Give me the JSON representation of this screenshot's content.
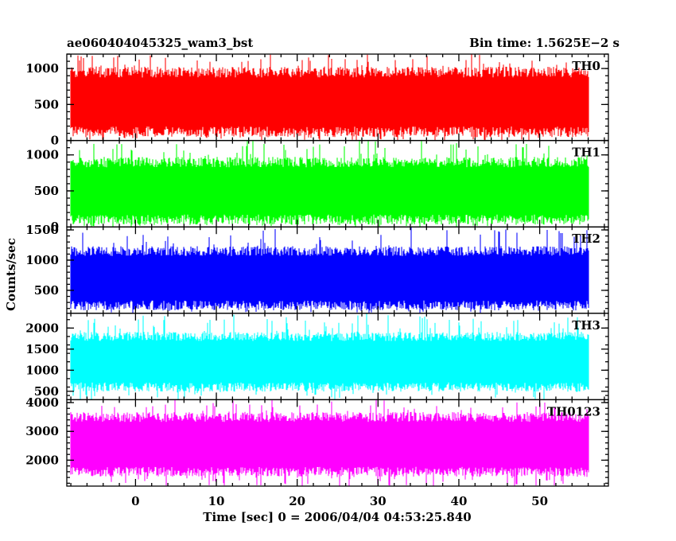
{
  "header": {
    "title": "ae060404045325_wam3_bst",
    "bin_time": "Bin time: 1.5625E−2 s"
  },
  "chart_data": {
    "type": "line",
    "xlabel": "Time [sec] 0 = 2006/04/04 04:53:25.840",
    "ylabel": "Counts/sec",
    "xlim": [
      -8.5,
      58.5
    ],
    "data_range": [
      -8.0,
      56.0
    ],
    "bin_time": 0.015625,
    "x_ticks": [
      0,
      10,
      20,
      30,
      40,
      50
    ],
    "panels": [
      {
        "name": "TH0",
        "color": "#ff0000",
        "ylim": [
          0,
          1200
        ],
        "yticks": [
          0,
          500,
          1000
        ],
        "typical_low": 120,
        "typical_high": 950,
        "spike_max": 1200,
        "noise_min": 0
      },
      {
        "name": "TH1",
        "color": "#00ff00",
        "ylim": [
          0,
          1200
        ],
        "yticks": [
          0,
          500,
          1000
        ],
        "typical_low": 100,
        "typical_high": 900,
        "spike_max": 1200,
        "noise_min": 0
      },
      {
        "name": "TH2",
        "color": "#0000ff",
        "ylim": [
          120,
          1550
        ],
        "yticks": [
          500,
          1000,
          1500
        ],
        "typical_low": 250,
        "typical_high": 1150,
        "spike_max": 1550,
        "noise_min": 120
      },
      {
        "name": "TH3",
        "color": "#00ffff",
        "ylim": [
          300,
          2350
        ],
        "yticks": [
          500,
          1000,
          1500,
          2000
        ],
        "typical_low": 600,
        "typical_high": 1800,
        "spike_max": 2350,
        "noise_min": 300
      },
      {
        "name": "TH0123",
        "color": "#ff00ff",
        "ylim": [
          1100,
          4100
        ],
        "yticks": [
          2000,
          3000,
          4000
        ],
        "typical_low": 1600,
        "typical_high": 3500,
        "spike_max": 4100,
        "noise_min": 1100
      }
    ]
  }
}
